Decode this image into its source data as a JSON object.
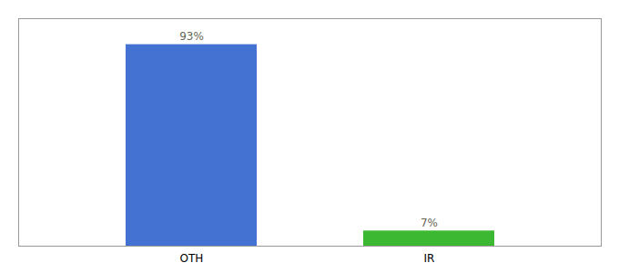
{
  "chart_data": {
    "type": "bar",
    "categories": [
      "OTH",
      "IR"
    ],
    "values": [
      93,
      7
    ],
    "value_labels": [
      "93%",
      "7%"
    ],
    "colors": [
      "#4472d3",
      "#3cb832"
    ],
    "ylim": [
      0,
      105
    ],
    "tick_labels": "x",
    "data_labels": true
  }
}
